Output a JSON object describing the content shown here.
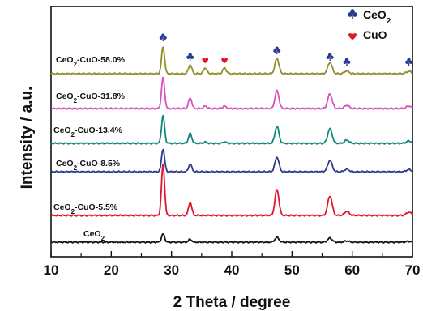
{
  "chart_data": {
    "type": "line",
    "xlabel": "2 Theta / degree",
    "ylabel": "Intensity / a.u.",
    "xlim": [
      10,
      70
    ],
    "xticks": [
      "10",
      "20",
      "30",
      "40",
      "50",
      "60",
      "70"
    ],
    "grid": false,
    "y_ticks_shown": false,
    "legend": {
      "placement": "top-right",
      "items": [
        {
          "name": "CeO2",
          "display": {
            "base": "CeO",
            "sub": "2"
          },
          "marker": "club",
          "color": "#2b3a8f"
        },
        {
          "name": "CuO",
          "display": {
            "base": "CuO",
            "sub": ""
          },
          "marker": "heart",
          "color": "#e0162b"
        }
      ]
    },
    "peak_markers": [
      {
        "x": 28.6,
        "phase": "CeO2",
        "marker": "club"
      },
      {
        "x": 33.1,
        "phase": "CeO2",
        "marker": "club"
      },
      {
        "x": 35.6,
        "phase": "CuO",
        "marker": "heart"
      },
      {
        "x": 38.8,
        "phase": "CuO",
        "marker": "heart"
      },
      {
        "x": 47.5,
        "phase": "CeO2",
        "marker": "club"
      },
      {
        "x": 56.3,
        "phase": "CeO2",
        "marker": "club"
      },
      {
        "x": 59.1,
        "phase": "CeO2",
        "marker": "club"
      },
      {
        "x": 69.4,
        "phase": "CeO2",
        "marker": "club"
      }
    ],
    "series": [
      {
        "name": "CeO2",
        "label": {
          "pre": "CeO",
          "sub": "2",
          "post": ""
        },
        "color": "#111111",
        "offset": 0,
        "peaks": [
          [
            28.6,
            10
          ],
          [
            33.1,
            3.5
          ],
          [
            47.5,
            6
          ],
          [
            56.3,
            5
          ],
          [
            59.1,
            1.5
          ],
          [
            69.4,
            1
          ]
        ]
      },
      {
        "name": "CeO2-CuO-5.5%",
        "label": {
          "pre": "CeO",
          "sub": "2",
          "post": "-CuO-5.5%"
        },
        "color": "#e0162b",
        "offset": 33,
        "peaks": [
          [
            28.6,
            63
          ],
          [
            33.1,
            16
          ],
          [
            47.5,
            32
          ],
          [
            56.3,
            24
          ],
          [
            59.1,
            5
          ],
          [
            69.4,
            4
          ]
        ]
      },
      {
        "name": "CeO2-CuO-8.5%",
        "label": {
          "pre": "CeO",
          "sub": "2",
          "post": "-CuO-8.5%"
        },
        "color": "#2b3a8f",
        "offset": 87,
        "peaks": [
          [
            28.6,
            28
          ],
          [
            33.1,
            9
          ],
          [
            47.5,
            18
          ],
          [
            56.3,
            14
          ],
          [
            59.1,
            3
          ],
          [
            69.4,
            2.5
          ]
        ]
      },
      {
        "name": "CeO2-CuO-13.4%",
        "label": {
          "pre": "CeO",
          "sub": "2",
          "post": "-CuO-13.4%"
        },
        "color": "#10857c",
        "offset": 122,
        "peaks": [
          [
            28.6,
            34
          ],
          [
            33.1,
            12
          ],
          [
            35.6,
            1.5
          ],
          [
            38.8,
            1.5
          ],
          [
            47.5,
            21
          ],
          [
            56.3,
            18
          ],
          [
            59.1,
            4
          ],
          [
            69.4,
            3
          ]
        ]
      },
      {
        "name": "CeO2-CuO-31.8%",
        "label": {
          "pre": "CeO",
          "sub": "2",
          "post": "-CuO-31.8%"
        },
        "color": "#d94fc0",
        "offset": 165,
        "peaks": [
          [
            28.6,
            38
          ],
          [
            33.1,
            13
          ],
          [
            35.6,
            3
          ],
          [
            38.8,
            3
          ],
          [
            47.5,
            22
          ],
          [
            56.3,
            18
          ],
          [
            59.1,
            4
          ],
          [
            69.4,
            3
          ]
        ]
      },
      {
        "name": "CeO2-CuO-58.0%",
        "label": {
          "pre": "CeO",
          "sub": "2",
          "post": "-CuO-58.0%"
        },
        "color": "#8f8f25",
        "offset": 208,
        "peaks": [
          [
            28.6,
            33
          ],
          [
            33.1,
            11
          ],
          [
            35.6,
            7
          ],
          [
            38.8,
            7
          ],
          [
            47.5,
            19
          ],
          [
            56.3,
            14
          ],
          [
            59.1,
            3.5
          ],
          [
            69.4,
            3
          ]
        ]
      }
    ]
  }
}
